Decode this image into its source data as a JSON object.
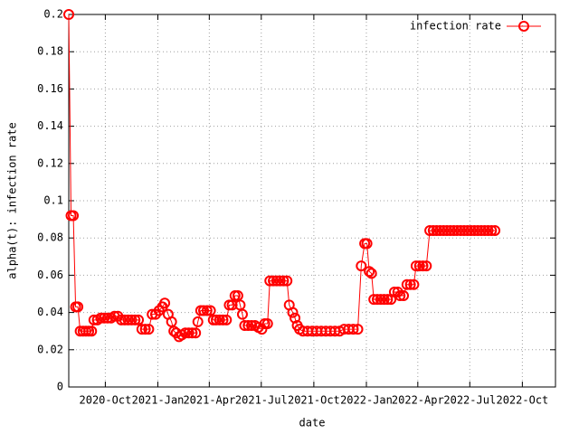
{
  "chart_data": {
    "type": "line",
    "x_label": "date",
    "y_label": "alpha(t): infection rate",
    "xlim": [
      210,
      1062
    ],
    "ylim": [
      0,
      0.2
    ],
    "xticks": [
      {
        "value": 274,
        "label": "2020-Oct"
      },
      {
        "value": 366,
        "label": "2021-Jan"
      },
      {
        "value": 456,
        "label": "2021-Apr"
      },
      {
        "value": 547,
        "label": "2021-Jul"
      },
      {
        "value": 639,
        "label": "2021-Oct"
      },
      {
        "value": 731,
        "label": "2022-Jan"
      },
      {
        "value": 821,
        "label": "2022-Apr"
      },
      {
        "value": 912,
        "label": "2022-Jul"
      },
      {
        "value": 1004,
        "label": "2022-Oct"
      }
    ],
    "yticks": [
      0,
      0.02,
      0.04,
      0.06,
      0.08,
      0.1,
      0.12,
      0.14,
      0.16,
      0.18,
      0.2
    ],
    "grid": true,
    "legend": "upper right",
    "series": [
      {
        "name": "infection rate",
        "color": "#ff0000",
        "x": [
          210,
          214,
          218,
          222,
          226,
          230,
          235,
          240,
          245,
          250,
          254,
          260,
          266,
          272,
          278,
          284,
          290,
          296,
          302,
          308,
          314,
          320,
          326,
          332,
          338,
          344,
          350,
          356,
          362,
          368,
          374,
          378,
          384,
          390,
          394,
          398,
          403,
          408,
          414,
          420,
          426,
          432,
          436,
          441,
          446,
          452,
          458,
          463,
          468,
          474,
          480,
          486,
          491,
          496,
          501,
          506,
          510,
          514,
          518,
          524,
          530,
          536,
          542,
          548,
          553,
          558,
          562,
          568,
          574,
          580,
          586,
          592,
          596,
          602,
          606,
          610,
          614,
          620,
          628,
          636,
          644,
          652,
          660,
          668,
          676,
          684,
          692,
          700,
          708,
          716,
          722,
          728,
          732,
          736,
          740,
          744,
          750,
          756,
          762,
          768,
          774,
          780,
          786,
          790,
          796,
          802,
          808,
          814,
          818,
          824,
          830,
          836,
          842,
          848,
          854,
          860,
          866,
          872,
          878,
          884,
          890,
          896,
          902,
          908,
          914,
          920,
          926,
          932,
          938,
          944,
          950,
          956
        ],
        "values": [
          0.2,
          0.092,
          0.092,
          0.043,
          0.043,
          0.03,
          0.03,
          0.03,
          0.03,
          0.03,
          0.036,
          0.036,
          0.037,
          0.037,
          0.037,
          0.037,
          0.038,
          0.038,
          0.036,
          0.036,
          0.036,
          0.036,
          0.036,
          0.036,
          0.031,
          0.031,
          0.031,
          0.039,
          0.039,
          0.041,
          0.043,
          0.045,
          0.039,
          0.035,
          0.03,
          0.029,
          0.027,
          0.028,
          0.029,
          0.029,
          0.029,
          0.029,
          0.035,
          0.041,
          0.041,
          0.041,
          0.041,
          0.036,
          0.036,
          0.036,
          0.036,
          0.036,
          0.044,
          0.044,
          0.049,
          0.049,
          0.044,
          0.039,
          0.033,
          0.033,
          0.033,
          0.033,
          0.032,
          0.031,
          0.034,
          0.034,
          0.057,
          0.057,
          0.057,
          0.057,
          0.057,
          0.057,
          0.044,
          0.04,
          0.037,
          0.033,
          0.031,
          0.03,
          0.03,
          0.03,
          0.03,
          0.03,
          0.03,
          0.03,
          0.03,
          0.03,
          0.031,
          0.031,
          0.031,
          0.031,
          0.065,
          0.077,
          0.077,
          0.062,
          0.061,
          0.047,
          0.047,
          0.047,
          0.047,
          0.047,
          0.047,
          0.051,
          0.051,
          0.049,
          0.049,
          0.055,
          0.055,
          0.055,
          0.065,
          0.065,
          0.065,
          0.065,
          0.084,
          0.084,
          0.084,
          0.084,
          0.084,
          0.084,
          0.084,
          0.084,
          0.084,
          0.084,
          0.084,
          0.084,
          0.084,
          0.084,
          0.084,
          0.084,
          0.084,
          0.084,
          0.084,
          0.084
        ]
      }
    ]
  }
}
